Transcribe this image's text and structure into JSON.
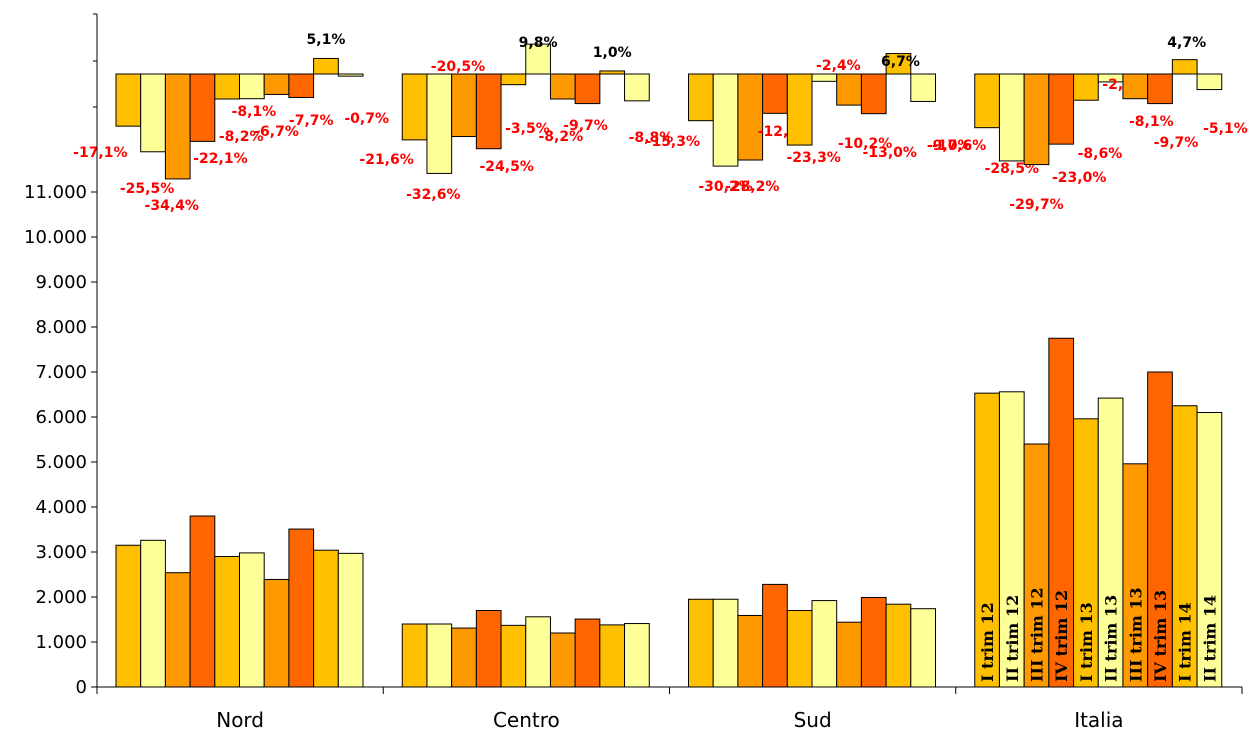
{
  "chart_data": {
    "type": "bar",
    "categories": [
      "Nord",
      "Centro",
      "Sud",
      "Italia"
    ],
    "series": [
      {
        "name": "I trim 12",
        "values": [
          3150,
          1400,
          1950,
          6530
        ]
      },
      {
        "name": "II trim 12",
        "values": [
          3260,
          1400,
          1950,
          6560
        ]
      },
      {
        "name": "III trim 12",
        "values": [
          2540,
          1310,
          1590,
          5400
        ]
      },
      {
        "name": "IV trim 12",
        "values": [
          3800,
          1700,
          2280,
          7750
        ]
      },
      {
        "name": "I trim 13",
        "values": [
          2900,
          1370,
          1700,
          5960
        ]
      },
      {
        "name": "II trim 13",
        "values": [
          2980,
          1560,
          1920,
          6420
        ]
      },
      {
        "name": "III trim 13",
        "values": [
          2390,
          1200,
          1440,
          4960
        ]
      },
      {
        "name": "IV trim 13",
        "values": [
          3510,
          1510,
          1990,
          7000
        ]
      },
      {
        "name": "I trim 14",
        "values": [
          3040,
          1380,
          1840,
          6250
        ]
      },
      {
        "name": "II trim 14",
        "values": [
          2970,
          1410,
          1740,
          6100
        ]
      }
    ],
    "ylim": [
      0,
      11000
    ],
    "yticks": [
      0,
      1000,
      2000,
      3000,
      4000,
      5000,
      6000,
      7000,
      8000,
      9000,
      10000,
      11000
    ],
    "ytick_labels": [
      "0",
      "1.000",
      "2.000",
      "3.000",
      "4.000",
      "5.000",
      "6.000",
      "7.000",
      "8.000",
      "9.000",
      "10.000",
      "11.000"
    ],
    "title": "",
    "xlabel": "",
    "ylabel": "",
    "grid": false,
    "legend": "none",
    "colors": [
      "#FFC000",
      "#FFFF99",
      "#FF9900",
      "#FF6600",
      "#FFC000",
      "#FFFF99",
      "#FF9900",
      "#FF6600",
      "#FFC000",
      "#FFFF99"
    ],
    "pct_change": {
      "series_values": [
        [
          -17.1,
          -25.5,
          -34.4,
          -22.1,
          -8.2,
          -8.1,
          -6.7,
          -7.7,
          5.1,
          -0.7
        ],
        [
          -21.6,
          -32.6,
          -20.5,
          -24.5,
          -3.5,
          9.8,
          -8.2,
          -9.7,
          1.0,
          -8.8
        ],
        [
          -15.3,
          -30.2,
          -28.2,
          -12.9,
          -23.3,
          -2.4,
          -10.2,
          -13.0,
          6.7,
          -9.0
        ],
        [
          -17.6,
          -28.5,
          -29.7,
          -23.0,
          -8.6,
          -2.6,
          -8.1,
          -9.7,
          4.7,
          -5.1
        ]
      ],
      "labels": [
        [
          "-17,1%",
          "-25,5%",
          "-34,4%",
          "-22,1%",
          "-8,2%",
          "-8,1%",
          "-6,7%",
          "-7,7%",
          "5,1%",
          "-0,7%"
        ],
        [
          "-21,6%",
          "-32,6%",
          "-20,5%",
          "-24,5%",
          "-3,5%",
          "9,8%",
          "-8,2%",
          "-9,7%",
          "1,0%",
          "-8,8%"
        ],
        [
          "-15,3%",
          "-30,2%",
          "-28,2%",
          "-12,9%",
          "-23,3%",
          "-2,4%",
          "-10,2%",
          "-13,0%",
          "6,7%",
          "-9,0%"
        ],
        [
          "-17,6%",
          "-28,5%",
          "-29,7%",
          "-23,0%",
          "-8,6%",
          "-2,6%",
          "-8,1%",
          "-9,7%",
          "4,7%",
          "-5,1%"
        ]
      ],
      "negative_color": "#FF0000",
      "positive_color": "#000000"
    },
    "bar_labels_in_category": "Italia"
  }
}
